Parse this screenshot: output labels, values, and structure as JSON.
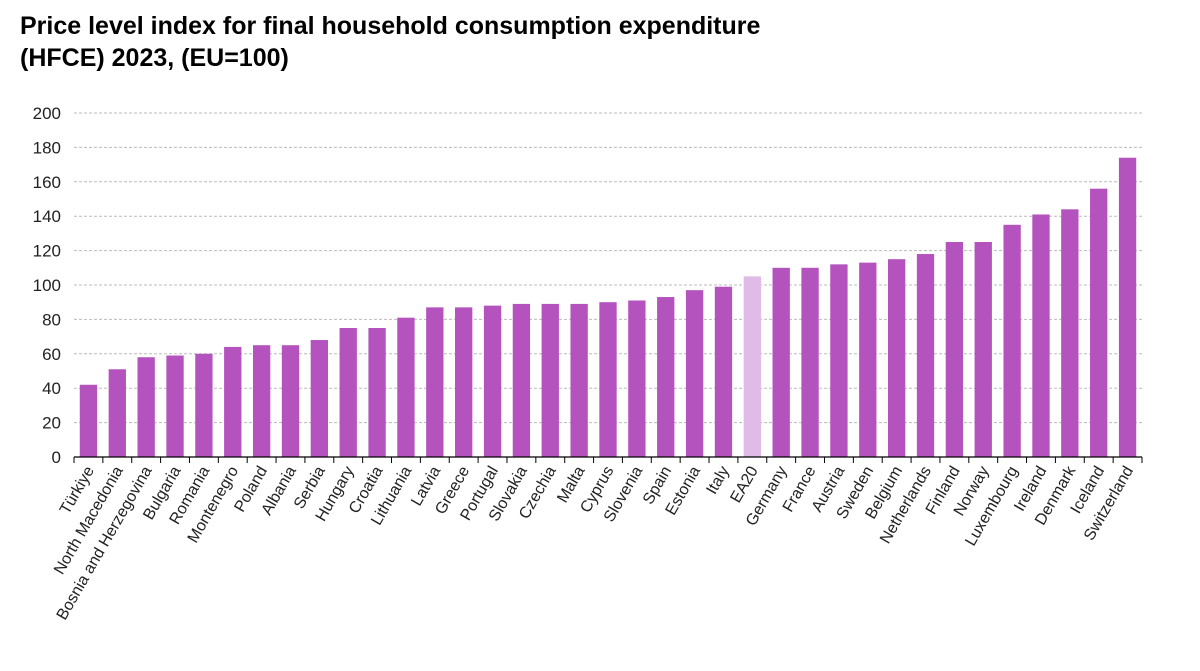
{
  "title_line1": "Price level index for final household consumption expenditure",
  "title_line2": "(HFCE) 2023, (EU=100)",
  "colors": {
    "bar": "#b452be",
    "highlight": "#e1bbe7",
    "grid": "#bbbbbb",
    "axis": "#000000"
  },
  "chart_data": {
    "type": "bar",
    "title": "Price level index for final household consumption expenditure (HFCE) 2023, (EU=100)",
    "xlabel": "",
    "ylabel": "",
    "ylim": [
      0,
      200
    ],
    "yticks": [
      0,
      20,
      40,
      60,
      80,
      100,
      120,
      140,
      160,
      180,
      200
    ],
    "grid": true,
    "categories": [
      "Türkiye",
      "North Macedonia",
      "Bosnia and Herzegovina",
      "Bulgaria",
      "Romania",
      "Montenegro",
      "Poland",
      "Albania",
      "Serbia",
      "Hungary",
      "Croatia",
      "Lithuania",
      "Latvia",
      "Greece",
      "Portugal",
      "Slovakia",
      "Czechia",
      "Malta",
      "Cyprus",
      "Slovenia",
      "Spain",
      "Estonia",
      "Italy",
      "EA20",
      "Germany",
      "France",
      "Austria",
      "Sweden",
      "Belgium",
      "Netherlands",
      "Finland",
      "Norway",
      "Luxembourg",
      "Ireland",
      "Denmark",
      "Iceland",
      "Switzerland"
    ],
    "values": [
      42,
      51,
      58,
      59,
      60,
      64,
      65,
      65,
      68,
      75,
      75,
      81,
      87,
      87,
      88,
      89,
      89,
      89,
      90,
      91,
      93,
      97,
      99,
      105,
      110,
      110,
      112,
      113,
      115,
      118,
      125,
      125,
      135,
      141,
      144,
      156,
      174
    ],
    "highlight": [
      "EA20"
    ]
  }
}
